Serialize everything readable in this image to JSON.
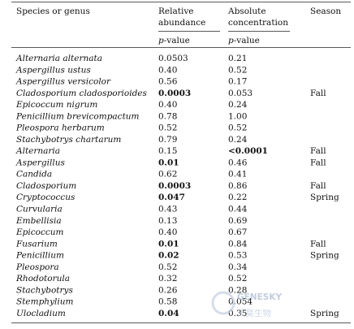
{
  "header": {
    "columns": [
      "Species or genus",
      [
        "Relative",
        "abundance"
      ],
      [
        "Absolute",
        "concentration"
      ],
      "Season"
    ],
    "subheader": [
      "p-value",
      "p-value"
    ]
  },
  "table": {
    "rows": [
      {
        "cells": [
          "Alternaria alternata",
          "0.0503",
          "0.21",
          null
        ]
      },
      {
        "cells": [
          "Aspergillus ustus",
          "0.40",
          "0.52",
          null
        ]
      },
      {
        "cells": [
          "Aspergillus versicolor",
          "0.56",
          "0.17",
          null
        ]
      },
      {
        "cells": [
          "Cladosporium cladosporioides",
          "0.0003",
          "0.053",
          "Fall"
        ],
        "bold": 1
      },
      {
        "cells": [
          "Epicoccum nigrum",
          "0.40",
          "0.24",
          null
        ]
      },
      {
        "cells": [
          "Penicillium brevicompactum",
          "0.78",
          "1.00",
          null
        ]
      },
      {
        "cells": [
          "Pleospora herbarum",
          "0.52",
          "0.52",
          null
        ]
      },
      {
        "cells": [
          "Stachybotrys chartarum",
          "0.79",
          "0.24",
          null
        ]
      },
      {
        "cells": [
          "Alternaria",
          "0.15",
          "<0.0001",
          "Fall"
        ],
        "bold": 2
      },
      {
        "cells": [
          "Aspergillus",
          "0.01",
          "0.46",
          "Fall"
        ],
        "bold": 1
      },
      {
        "cells": [
          "Candida",
          "0.62",
          "0.41",
          null
        ]
      },
      {
        "cells": [
          "Cladosporium",
          "0.0003",
          "0.86",
          "Fall"
        ],
        "bold": 1
      },
      {
        "cells": [
          "Cryptococcus",
          "0.047",
          "0.22",
          "Spring"
        ],
        "bold": 1
      },
      {
        "cells": [
          "Curvularia",
          "0.43",
          "0.44",
          null
        ]
      },
      {
        "cells": [
          "Embellisia",
          "0.13",
          "0.69",
          null
        ]
      },
      {
        "cells": [
          "Epicoccum",
          "0.40",
          "0.67",
          null
        ]
      },
      {
        "cells": [
          "Fusarium",
          "0.01",
          "0.84",
          "Fall"
        ],
        "bold": 1
      },
      {
        "cells": [
          "Penicillium",
          "0.02",
          "0.53",
          "Spring"
        ],
        "bold": 1
      },
      {
        "cells": [
          "Pleospora",
          "0.52",
          "0.34",
          null
        ]
      },
      {
        "cells": [
          "Rhodotorula",
          "0.32",
          "0.52",
          null
        ]
      },
      {
        "cells": [
          "Stachybotrys",
          "0.26",
          "0.28",
          null
        ]
      },
      {
        "cells": [
          "Stemphylium",
          "0.58",
          "0.054",
          null
        ]
      },
      {
        "cells": [
          "Ulocladium",
          "0.04",
          "0.35",
          "Spring"
        ],
        "bold": 1
      }
    ]
  },
  "watermark": {
    "latin": "GENESKY",
    "chinese": "天昊生物"
  }
}
